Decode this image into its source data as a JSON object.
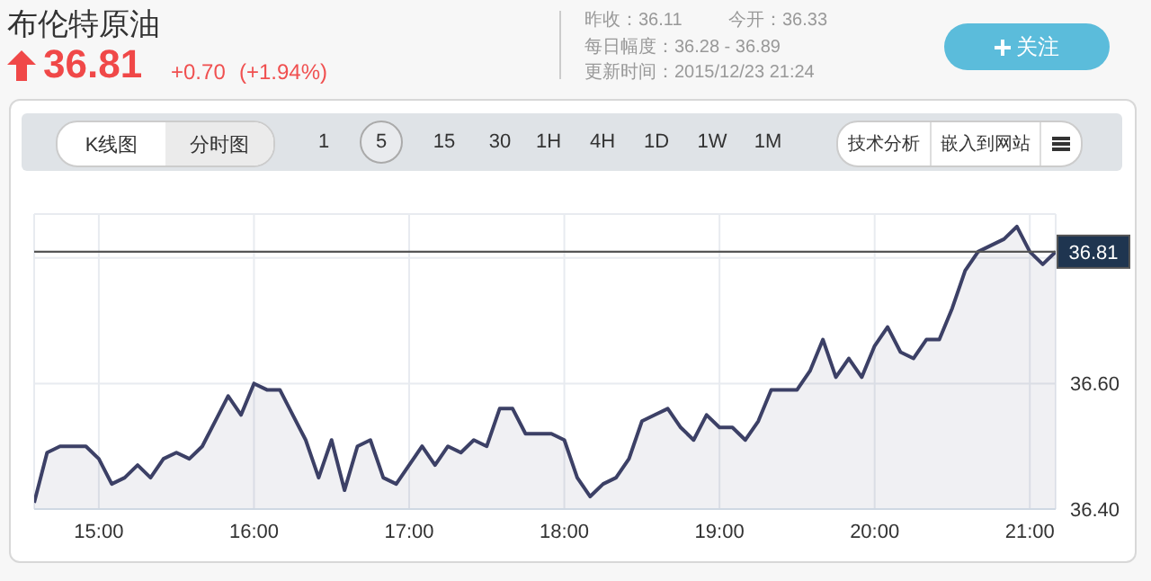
{
  "chart_data": {
    "type": "area",
    "title": "布伦特原油",
    "annotations": [
      "36.81",
      "+0.70",
      "(+1.94%)",
      "昨收：36.11",
      "今开：36.33",
      "每日幅度：36.28 - 36.89",
      "更新时间：2015/12/23 21:24",
      "关注",
      "K线图",
      "分时图",
      "1 5 15 30 1H 4H 1D 1W 1M",
      "技术分析",
      "嵌入到网站"
    ],
    "x": [
      "2015-12-23T14:35",
      "2015-12-23T14:40",
      "2015-12-23T14:45",
      "2015-12-23T14:50",
      "2015-12-23T14:55",
      "2015-12-23T15:00",
      "2015-12-23T15:05",
      "2015-12-23T15:10",
      "2015-12-23T15:15",
      "2015-12-23T15:20",
      "2015-12-23T15:25",
      "2015-12-23T15:30",
      "2015-12-23T15:35",
      "2015-12-23T15:40",
      "2015-12-23T15:45",
      "2015-12-23T15:50",
      "2015-12-23T15:55",
      "2015-12-23T16:00",
      "2015-12-23T16:05",
      "2015-12-23T16:10",
      "2015-12-23T16:15",
      "2015-12-23T16:20",
      "2015-12-23T16:25",
      "2015-12-23T16:30",
      "2015-12-23T16:35",
      "2015-12-23T16:40",
      "2015-12-23T16:45",
      "2015-12-23T16:50",
      "2015-12-23T16:55",
      "2015-12-23T17:00",
      "2015-12-23T17:05",
      "2015-12-23T17:10",
      "2015-12-23T17:15",
      "2015-12-23T17:20",
      "2015-12-23T17:25",
      "2015-12-23T17:30",
      "2015-12-23T17:35",
      "2015-12-23T17:40",
      "2015-12-23T17:45",
      "2015-12-23T17:50",
      "2015-12-23T17:55",
      "2015-12-23T18:00",
      "2015-12-23T18:05",
      "2015-12-23T18:10",
      "2015-12-23T18:15",
      "2015-12-23T18:20",
      "2015-12-23T18:25",
      "2015-12-23T18:30",
      "2015-12-23T18:35",
      "2015-12-23T18:40",
      "2015-12-23T18:45",
      "2015-12-23T18:50",
      "2015-12-23T18:55",
      "2015-12-23T19:00",
      "2015-12-23T19:05",
      "2015-12-23T19:10",
      "2015-12-23T19:15",
      "2015-12-23T19:20",
      "2015-12-23T19:25",
      "2015-12-23T19:30",
      "2015-12-23T19:35",
      "2015-12-23T19:40",
      "2015-12-23T19:45",
      "2015-12-23T19:50",
      "2015-12-23T19:55",
      "2015-12-23T20:00",
      "2015-12-23T20:05",
      "2015-12-23T20:10",
      "2015-12-23T20:15",
      "2015-12-23T20:20",
      "2015-12-23T20:25",
      "2015-12-23T20:30",
      "2015-12-23T20:35",
      "2015-12-23T20:40",
      "2015-12-23T20:45",
      "2015-12-23T20:50",
      "2015-12-23T20:55",
      "2015-12-23T21:00",
      "2015-12-23T21:05",
      "2015-12-23T21:10"
    ],
    "series": [
      {
        "color": "#3c4066",
        "values": [
          36.41,
          36.49,
          36.5,
          36.5,
          36.5,
          36.48,
          36.44,
          36.45,
          36.47,
          36.45,
          36.48,
          36.49,
          36.48,
          36.5,
          36.54,
          36.58,
          36.55,
          36.6,
          36.59,
          36.59,
          36.55,
          36.51,
          36.45,
          36.51,
          36.43,
          36.5,
          36.51,
          36.45,
          36.44,
          36.47,
          36.5,
          36.47,
          36.5,
          36.49,
          36.51,
          36.5,
          36.56,
          36.56,
          36.52,
          36.52,
          36.52,
          36.51,
          36.45,
          36.42,
          36.44,
          36.45,
          36.48,
          36.54,
          36.55,
          36.56,
          36.53,
          36.51,
          36.55,
          36.53,
          36.53,
          36.51,
          36.54,
          36.59,
          36.59,
          36.59,
          36.62,
          36.67,
          36.61,
          36.64,
          36.61,
          36.66,
          36.69,
          36.65,
          36.64,
          36.67,
          36.67,
          36.72,
          36.78,
          36.81,
          36.82,
          36.83,
          36.85,
          36.81,
          36.79,
          36.81
        ]
      }
    ],
    "xlim": [
      "2015-12-23T14:35",
      "2015-12-23T21:10"
    ],
    "xticks": [
      {
        "value": "2015-12-23T15:00",
        "label": "15:00"
      },
      {
        "value": "2015-12-23T16:00",
        "label": "16:00"
      },
      {
        "value": "2015-12-23T17:00",
        "label": "17:00"
      },
      {
        "value": "2015-12-23T18:00",
        "label": "18:00"
      },
      {
        "value": "2015-12-23T19:00",
        "label": "19:00"
      },
      {
        "value": "2015-12-23T20:00",
        "label": "20:00"
      },
      {
        "value": "2015-12-23T21:00",
        "label": "21:00"
      }
    ],
    "ylim": [
      36.4,
      36.87
    ],
    "yticks": [
      {
        "value": 36.4,
        "label": "36.40"
      },
      {
        "value": 36.6,
        "label": "36.60"
      },
      {
        "value": 36.8,
        "label": null
      }
    ],
    "ref_lines": [
      {
        "axis": "y",
        "value": 36.81,
        "label": "36.81",
        "color": "#555555"
      }
    ],
    "grid": true,
    "marker": "none",
    "line_style": "solid"
  }
}
